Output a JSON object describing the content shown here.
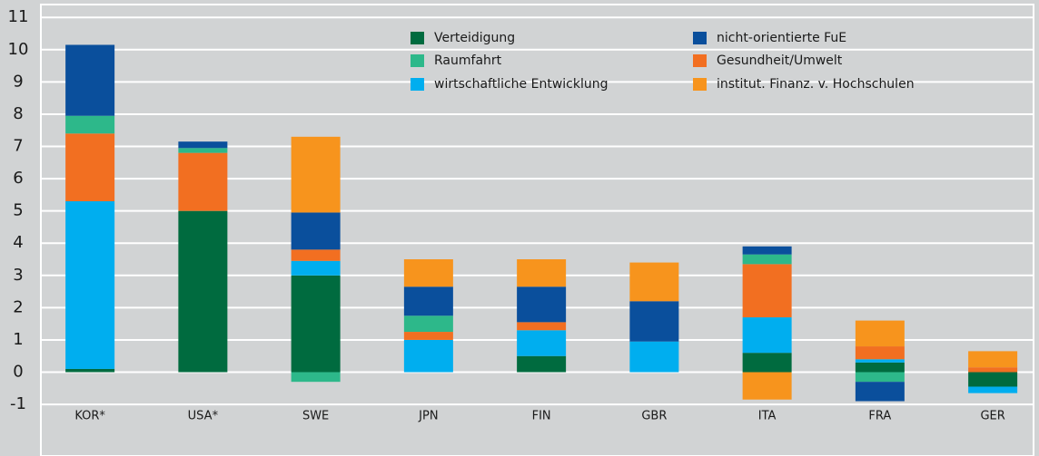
{
  "chart_data": {
    "type": "stacked_bar",
    "categories": [
      "KOR*",
      "USA*",
      "SWE",
      "JPN",
      "FIN",
      "GBR",
      "ITA",
      "FRA",
      "GER"
    ],
    "series": [
      {
        "name": "Verteidigung",
        "color": "#006b3f",
        "values": [
          0.1,
          5.0,
          3.0,
          0,
          0.5,
          0,
          0.6,
          0.3,
          -0.45
        ]
      },
      {
        "name": "Raumfahrt",
        "color": "#2db88a",
        "values": [
          0.55,
          0.15,
          -0.3,
          0.5,
          0,
          0,
          0.3,
          -0.3,
          0
        ]
      },
      {
        "name": "wirtschaftliche Entwicklung",
        "color": "#00aeef",
        "values": [
          5.2,
          0,
          0.45,
          1.0,
          0.8,
          0.95,
          1.1,
          0.1,
          -0.2
        ]
      },
      {
        "name": "nicht-orientierte FuE",
        "color": "#0a4f9c",
        "values": [
          2.2,
          0.2,
          1.15,
          0.9,
          1.1,
          1.25,
          0.25,
          -0.6,
          0
        ]
      },
      {
        "name": "Gesundheit/Umwelt",
        "color": "#f26f21",
        "values": [
          2.1,
          1.8,
          0.35,
          0.25,
          0.25,
          0,
          1.65,
          0.4,
          0.15
        ]
      },
      {
        "name": "institut. Finanz. v. Hochschulen",
        "color": "#f7941d",
        "values": [
          0,
          0,
          2.35,
          0.85,
          0.85,
          1.2,
          -0.85,
          0.8,
          0.5
        ]
      }
    ],
    "ylim": [
      -2.6,
      11.4
    ],
    "yticks": [
      -1,
      0,
      1,
      2,
      3,
      4,
      5,
      6,
      7,
      8,
      9,
      10,
      11
    ],
    "grid": true
  }
}
